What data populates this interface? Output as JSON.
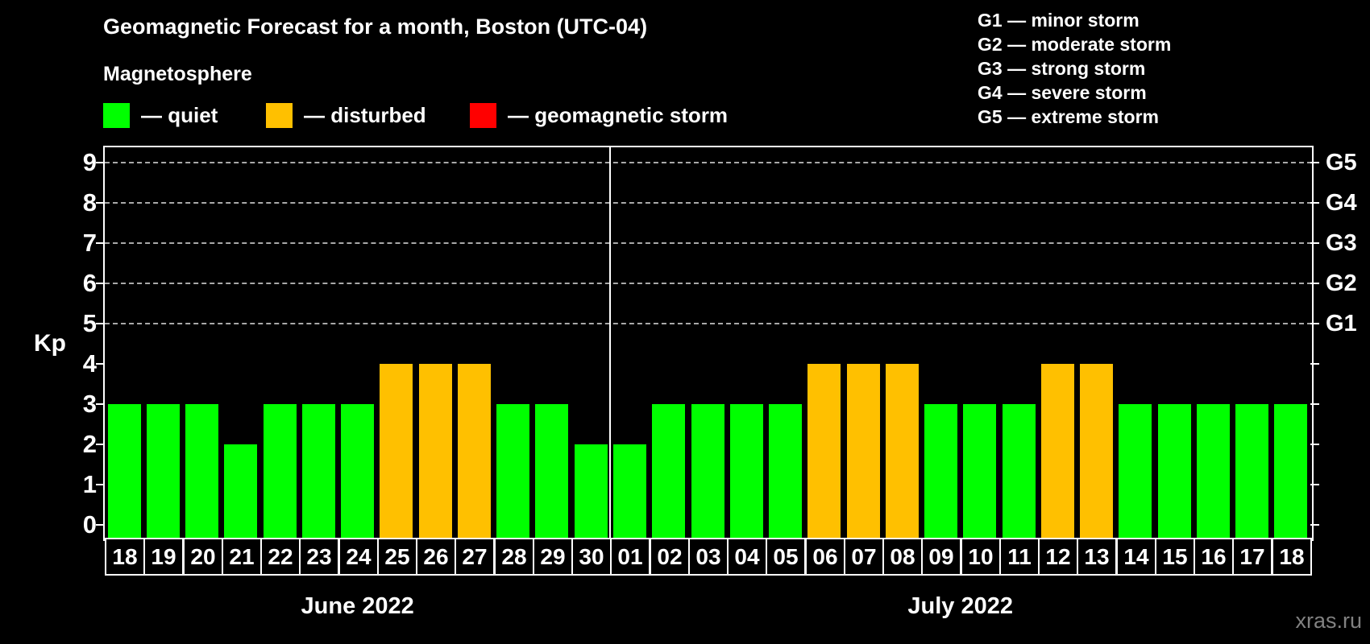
{
  "title": "Geomagnetic Forecast for a month, Boston (UTC-04)",
  "subtitle": "Magnetosphere",
  "legend": {
    "items": [
      {
        "key": "quiet",
        "label": "— quiet",
        "color": "#00ff00"
      },
      {
        "key": "disturbed",
        "label": "— disturbed",
        "color": "#ffc000"
      },
      {
        "key": "storm",
        "label": "— geomagnetic storm",
        "color": "#ff0000"
      }
    ]
  },
  "g_legend": [
    "G1 — minor storm",
    "G2 — moderate storm",
    "G3 — strong storm",
    "G4 — severe storm",
    "G5 — extreme storm"
  ],
  "watermark": "xras.ru",
  "chart_data": {
    "type": "bar",
    "title": "Geomagnetic Forecast for a month, Boston (UTC-04)",
    "ylabel": "Kp",
    "ylim": [
      -0.32,
      9.38
    ],
    "y_ticks": [
      0,
      1,
      2,
      3,
      4,
      5,
      6,
      7,
      8,
      9
    ],
    "gridlines_at": [
      5,
      6,
      7,
      8,
      9
    ],
    "grid": true,
    "right_axis": [
      {
        "kp": 5,
        "label": "G1"
      },
      {
        "kp": 6,
        "label": "G2"
      },
      {
        "kp": 7,
        "label": "G3"
      },
      {
        "kp": 8,
        "label": "G4"
      },
      {
        "kp": 9,
        "label": "G5"
      }
    ],
    "status_colors": {
      "quiet": "#00ff00",
      "disturbed": "#ffc000",
      "storm": "#ff0000"
    },
    "months": [
      {
        "label": "June 2022",
        "days": [
          {
            "day": "18",
            "kp": 3,
            "status": "quiet"
          },
          {
            "day": "19",
            "kp": 3,
            "status": "quiet"
          },
          {
            "day": "20",
            "kp": 3,
            "status": "quiet"
          },
          {
            "day": "21",
            "kp": 2,
            "status": "quiet"
          },
          {
            "day": "22",
            "kp": 3,
            "status": "quiet"
          },
          {
            "day": "23",
            "kp": 3,
            "status": "quiet"
          },
          {
            "day": "24",
            "kp": 3,
            "status": "quiet"
          },
          {
            "day": "25",
            "kp": 4,
            "status": "disturbed"
          },
          {
            "day": "26",
            "kp": 4,
            "status": "disturbed"
          },
          {
            "day": "27",
            "kp": 4,
            "status": "disturbed"
          },
          {
            "day": "28",
            "kp": 3,
            "status": "quiet"
          },
          {
            "day": "29",
            "kp": 3,
            "status": "quiet"
          },
          {
            "day": "30",
            "kp": 2,
            "status": "quiet"
          }
        ]
      },
      {
        "label": "July 2022",
        "days": [
          {
            "day": "01",
            "kp": 2,
            "status": "quiet"
          },
          {
            "day": "02",
            "kp": 3,
            "status": "quiet"
          },
          {
            "day": "03",
            "kp": 3,
            "status": "quiet"
          },
          {
            "day": "04",
            "kp": 3,
            "status": "quiet"
          },
          {
            "day": "05",
            "kp": 3,
            "status": "quiet"
          },
          {
            "day": "06",
            "kp": 4,
            "status": "disturbed"
          },
          {
            "day": "07",
            "kp": 4,
            "status": "disturbed"
          },
          {
            "day": "08",
            "kp": 4,
            "status": "disturbed"
          },
          {
            "day": "09",
            "kp": 3,
            "status": "quiet"
          },
          {
            "day": "10",
            "kp": 3,
            "status": "quiet"
          },
          {
            "day": "11",
            "kp": 3,
            "status": "quiet"
          },
          {
            "day": "12",
            "kp": 4,
            "status": "disturbed"
          },
          {
            "day": "13",
            "kp": 4,
            "status": "disturbed"
          },
          {
            "day": "14",
            "kp": 3,
            "status": "quiet"
          },
          {
            "day": "15",
            "kp": 3,
            "status": "quiet"
          },
          {
            "day": "16",
            "kp": 3,
            "status": "quiet"
          },
          {
            "day": "17",
            "kp": 3,
            "status": "quiet"
          },
          {
            "day": "18",
            "kp": 3,
            "status": "quiet"
          }
        ]
      }
    ]
  }
}
